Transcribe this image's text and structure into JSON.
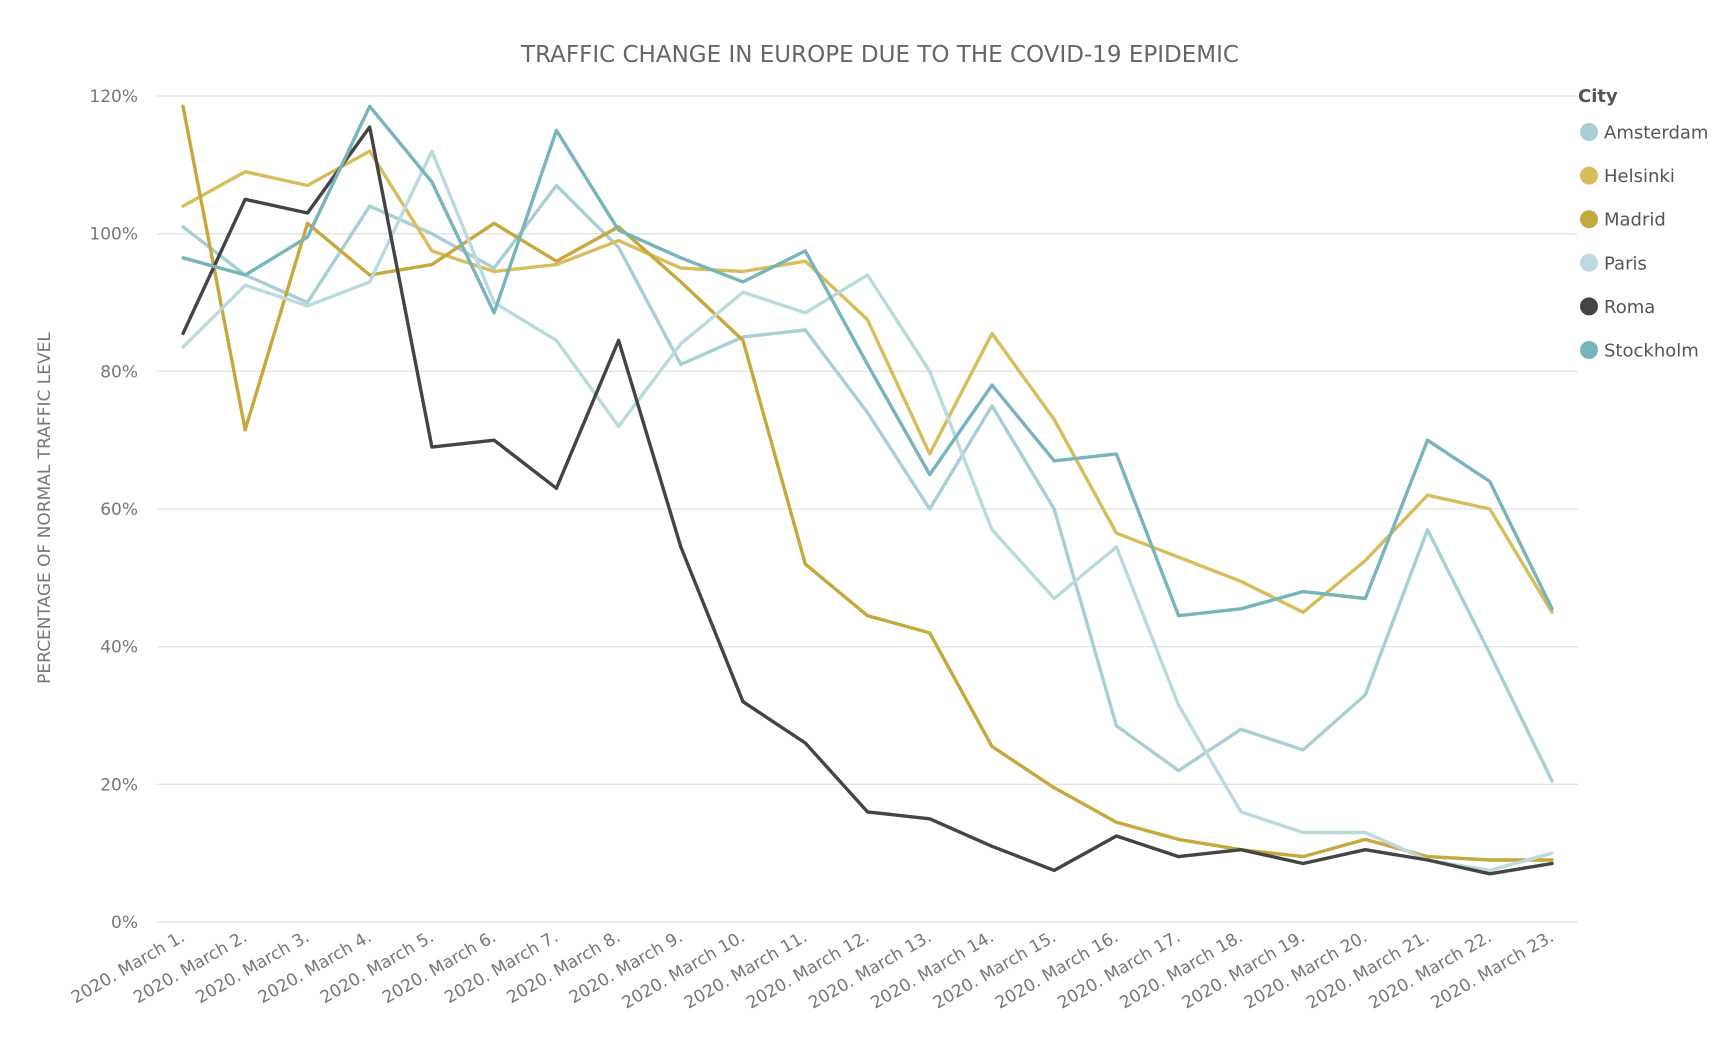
{
  "chart_data": {
    "type": "line",
    "title": "TRAFFIC CHANGE IN EUROPE DUE TO THE COVID-19 EPIDEMIC",
    "xlabel": "",
    "ylabel": "PERCENTAGE OF NORMAL TRAFFIC LEVEL",
    "ylim": [
      0,
      120
    ],
    "y_ticks": [
      "0%",
      "20%",
      "40%",
      "60%",
      "80%",
      "100%",
      "120%"
    ],
    "grid": true,
    "legend_title": "City",
    "legend_position": "right",
    "categories": [
      "2020. March 1.",
      "2020. March 2.",
      "2020. March 3.",
      "2020. March 4.",
      "2020. March 5.",
      "2020. March 6.",
      "2020. March 7.",
      "2020. March 8.",
      "2020. March 9.",
      "2020. March 10.",
      "2020. March 11.",
      "2020. March 12.",
      "2020. March 13.",
      "2020. March 14.",
      "2020. March 15.",
      "2020. March 16.",
      "2020. March 17.",
      "2020. March 18.",
      "2020. March 19.",
      "2020. March 20.",
      "2020. March 21.",
      "2020. March 22.",
      "2020. March 23."
    ],
    "series": [
      {
        "name": "Amsterdam",
        "color": "#a8cfd3",
        "values": [
          101,
          94,
          90,
          104,
          100,
          95,
          107,
          98,
          81,
          85,
          86,
          74,
          60,
          75,
          60,
          28.5,
          22,
          28,
          25,
          33,
          57,
          39,
          20.5
        ]
      },
      {
        "name": "Helsinki",
        "color": "#d8bd5d",
        "values": [
          104,
          109,
          107,
          112,
          97.5,
          94.5,
          95.5,
          99,
          95,
          94.5,
          96,
          87.5,
          68,
          85.5,
          73,
          56.5,
          53,
          49.5,
          45,
          52.5,
          62,
          60,
          45
        ]
      },
      {
        "name": "Madrid",
        "color": "#c6a83d",
        "values": [
          118.5,
          71.5,
          101.5,
          94,
          95.5,
          101.5,
          96,
          101,
          93,
          84.5,
          52,
          44.5,
          42,
          25.5,
          19.5,
          14.5,
          12,
          10.5,
          9.5,
          12,
          9.5,
          9,
          9
        ]
      },
      {
        "name": "Paris",
        "color": "#bcd9dd",
        "values": [
          83.5,
          92.5,
          89.5,
          93,
          112,
          90,
          84.5,
          72,
          84,
          91.5,
          88.5,
          94,
          80,
          57,
          47,
          54.5,
          31.5,
          16,
          13,
          13,
          9,
          7.5,
          10
        ]
      },
      {
        "name": "Roma",
        "color": "#444444",
        "values": [
          85.5,
          105,
          103,
          115.5,
          69,
          70,
          63,
          84.5,
          54.5,
          32,
          26,
          16,
          15,
          11,
          7.5,
          12.5,
          9.5,
          10.5,
          8.5,
          10.5,
          9,
          7,
          8.5
        ]
      },
      {
        "name": "Stockholm",
        "color": "#78b5bb",
        "values": [
          96.5,
          94,
          99.5,
          118.5,
          107.5,
          88.5,
          115,
          100.5,
          96.5,
          93,
          97.5,
          81,
          65,
          78,
          67,
          68,
          44.5,
          45.5,
          48,
          47,
          70,
          64,
          45.5
        ]
      }
    ]
  }
}
